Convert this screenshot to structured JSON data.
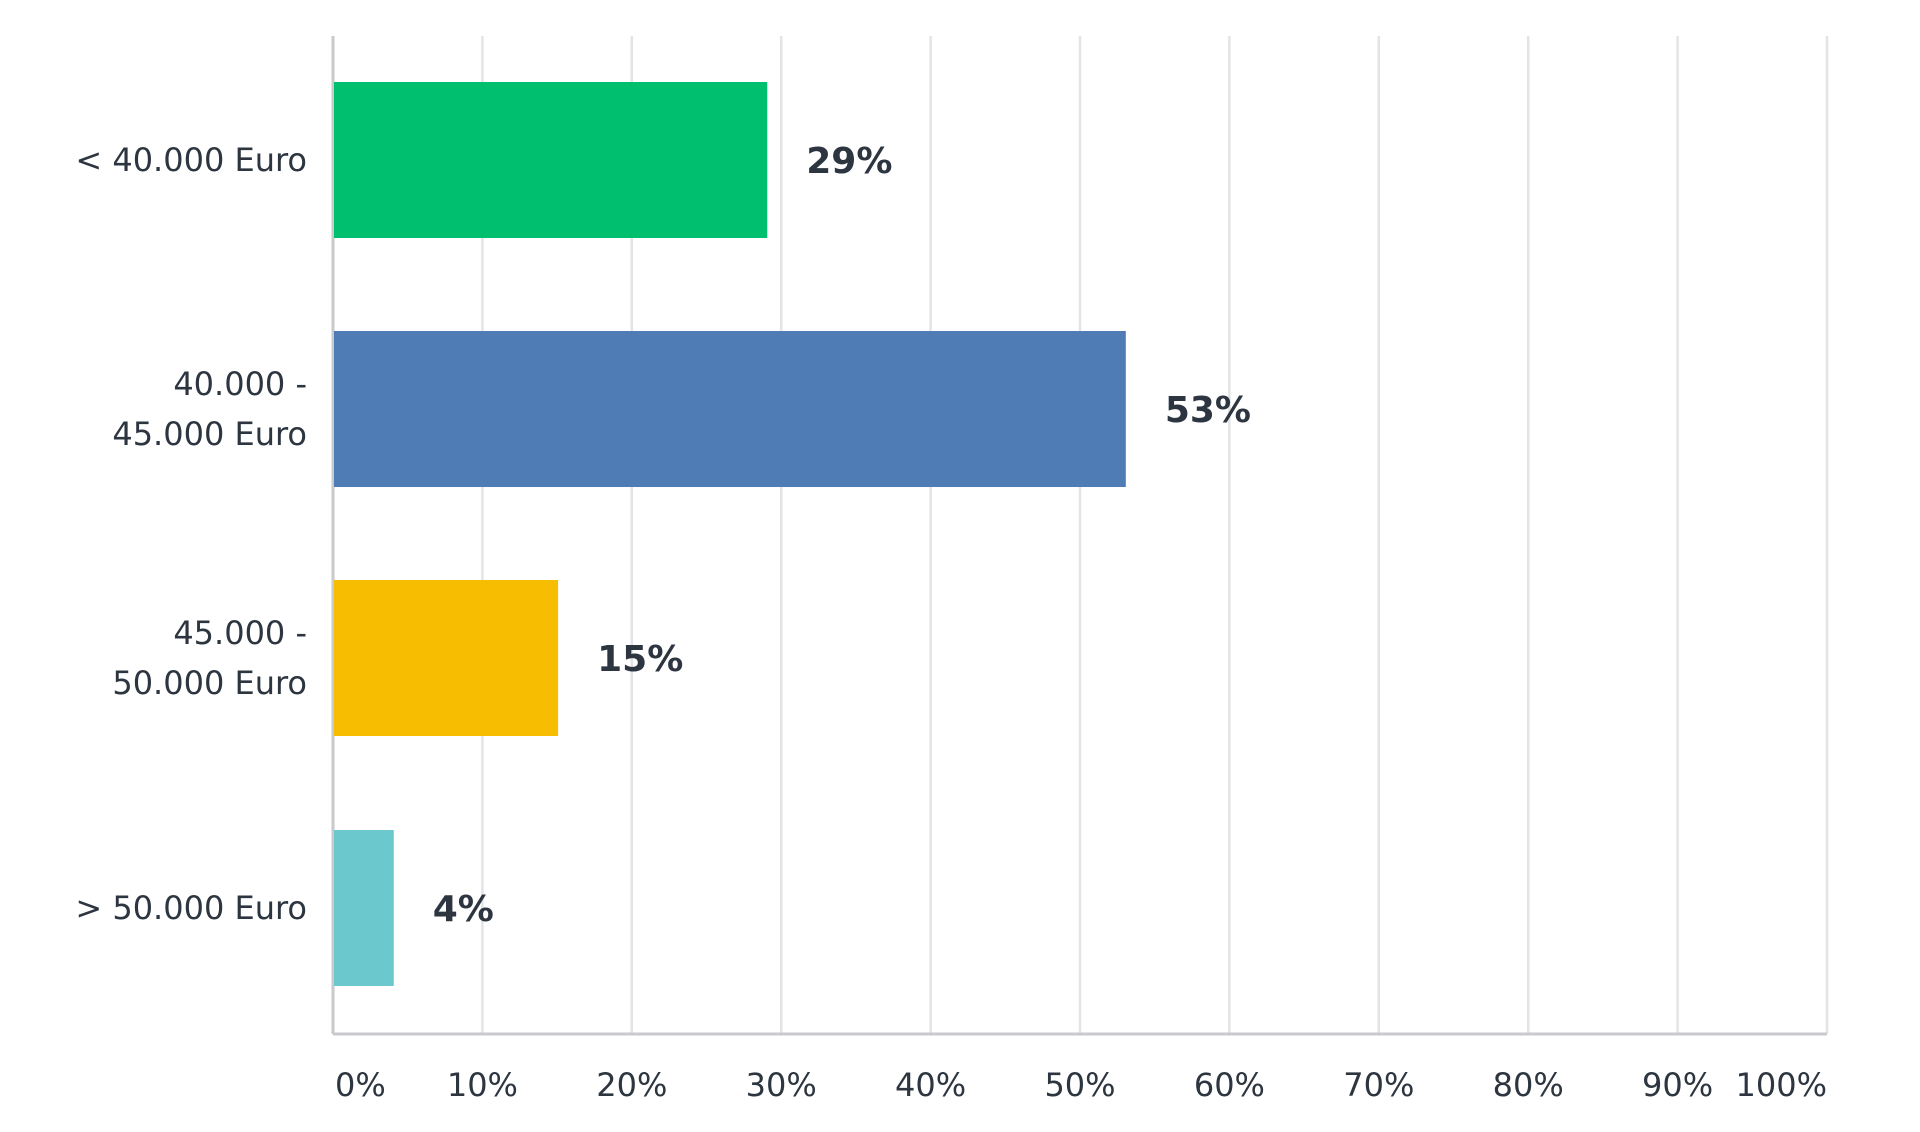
{
  "chart_data": {
    "type": "bar",
    "orientation": "horizontal",
    "title": "",
    "xlabel": "",
    "ylabel": "",
    "categories": [
      [
        "< 40.000 Euro"
      ],
      [
        "40.000 -",
        "45.000 Euro"
      ],
      [
        "45.000 -",
        "50.000 Euro"
      ],
      [
        "> 50.000 Euro"
      ]
    ],
    "values": [
      29,
      53,
      15,
      4
    ],
    "value_labels": [
      "29%",
      "53%",
      "15%",
      "4%"
    ],
    "bar_colors": [
      "#00bf6f",
      "#507cb6",
      "#f7bd00",
      "#6bc8cd"
    ],
    "xlim": [
      0,
      100
    ],
    "x_ticks": [
      0,
      10,
      20,
      30,
      40,
      50,
      60,
      70,
      80,
      90,
      100
    ],
    "x_tick_labels": [
      "0%",
      "10%",
      "20%",
      "30%",
      "40%",
      "50%",
      "60%",
      "70%",
      "80%",
      "90%",
      "100%"
    ],
    "grid": true,
    "legend": "none"
  }
}
